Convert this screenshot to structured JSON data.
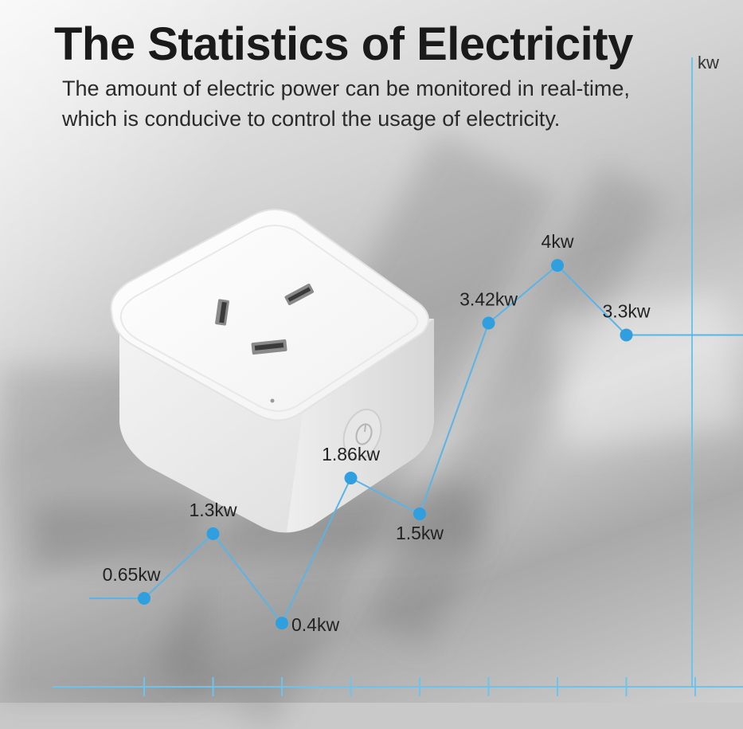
{
  "title": "The Statistics of Electricity",
  "subtitle_lines": [
    "The amount of electric power can be monitored in real-time,",
    "which is conducive to control the usage of electricity."
  ],
  "y_unit": "kw",
  "product": {
    "name": "smart-socket"
  },
  "colors": {
    "line": "#5ab4e6",
    "dot": "#2f9fe0",
    "axis": "#6ec3ea",
    "title": "#1a1a1a"
  },
  "chart_data": {
    "type": "line",
    "series": [
      {
        "values": [
          0.65,
          1.3,
          0.4,
          1.86,
          1.5,
          3.42,
          4,
          3.3
        ],
        "labels": [
          "0.65kw",
          "1.3kw",
          "0.4kw",
          "1.86kw",
          "1.5kw",
          "3.42kw",
          "4kw",
          "3.3kw"
        ]
      }
    ],
    "ylabel": "kw",
    "ylim": [
      0,
      4.5
    ],
    "grid": false
  }
}
